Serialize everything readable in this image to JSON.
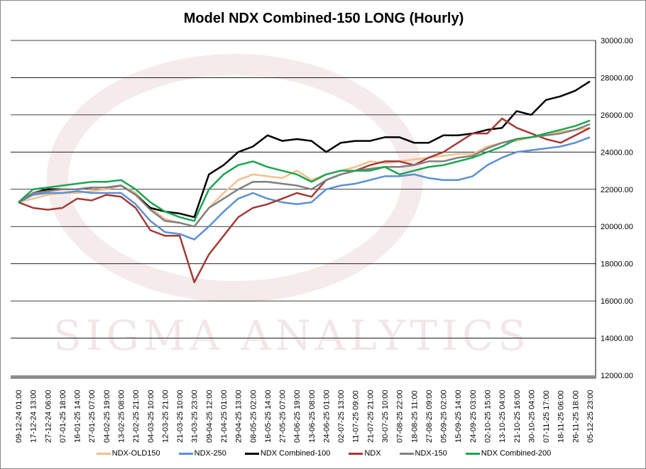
{
  "chart_data": {
    "type": "line",
    "title": "Model NDX Combined-150 LONG (Hourly)",
    "watermark": "SIGMA ANALYTICS",
    "xlabel": "",
    "ylabel": "",
    "ylim": [
      12000,
      30000
    ],
    "yticks": [
      12000,
      14000,
      16000,
      18000,
      20000,
      22000,
      24000,
      26000,
      28000,
      30000
    ],
    "ytick_labels": [
      "12000.00",
      "14000.00",
      "16000.00",
      "18000.00",
      "20000.00",
      "22000.00",
      "24000.00",
      "26000.00",
      "28000.00",
      "30000.00"
    ],
    "grid": true,
    "legend_position": "bottom",
    "categories": [
      "09-12-24 01:00",
      "17-12-24 13:00",
      "27-12-24 06:00",
      "07-01-25 18:00",
      "16-01-25 14:00",
      "27-01-25 07:00",
      "04-02-25 19:00",
      "13-02-25 08:00",
      "21-02-25 21:00",
      "04-03-25 10:00",
      "12-03-25 21:00",
      "21-03-25 10:00",
      "31-03-25 23:00",
      "09-04-25 12:00",
      "21-04-25 01:00",
      "29-04-25 13:00",
      "08-05-25 02:00",
      "16-05-25 14:00",
      "27-05-25 07:00",
      "04-06-25 19:00",
      "13-06-25 08:00",
      "24-06-25 01:00",
      "02-07-25 13:00",
      "11-07-25 09:00",
      "21-07-25 21:00",
      "30-07-25 10:00",
      "07-08-25 22:00",
      "18-08-25 11:00",
      "27-08-25 09:00",
      "05-09-25 02:00",
      "15-09-25 14:00",
      "24-09-25 03:00",
      "02-10-25 15:00",
      "13-10-25 04:00",
      "21-10-25 16:00",
      "30-10-25 04:00",
      "07-11-25 17:00",
      "18-11-25 06:00",
      "26-11-25 18:00",
      "05-12-25 23:00"
    ],
    "series": [
      {
        "name": "NDX-OLD150",
        "color": "#f4c08e",
        "values": [
          21300,
          21500,
          21700,
          21800,
          21800,
          21900,
          22000,
          22200,
          21800,
          21000,
          20400,
          20200,
          20000,
          21000,
          21800,
          22500,
          22800,
          22700,
          22600,
          23000,
          22500,
          22800,
          23000,
          23200,
          23500,
          23400,
          23500,
          23600,
          23700,
          23800,
          23900,
          23900,
          24300,
          24500,
          24600,
          24800,
          25000,
          25100,
          25200,
          25300
        ]
      },
      {
        "name": "NDX-250",
        "color": "#5b8fd6",
        "values": [
          21300,
          21700,
          21800,
          21800,
          21900,
          21800,
          21800,
          21800,
          21200,
          20300,
          19700,
          19600,
          19300,
          20000,
          20800,
          21500,
          21800,
          21500,
          21300,
          21200,
          21300,
          22000,
          22200,
          22300,
          22500,
          22700,
          22700,
          22800,
          22600,
          22500,
          22500,
          22700,
          23300,
          23700,
          24000,
          24100,
          24200,
          24300,
          24500,
          24800
        ]
      },
      {
        "name": "NDX Combined-100",
        "color": "#000000",
        "values": [
          21300,
          21800,
          22000,
          22000,
          22000,
          22100,
          22100,
          22200,
          21700,
          21000,
          20800,
          20700,
          20500,
          22800,
          23300,
          24000,
          24300,
          24900,
          24600,
          24700,
          24600,
          24000,
          24500,
          24600,
          24600,
          24800,
          24800,
          24500,
          24500,
          24900,
          24900,
          25000,
          25200,
          25300,
          26200,
          26000,
          26800,
          27000,
          27300,
          27800
        ]
      },
      {
        "name": "NDX",
        "color": "#a33a35",
        "values": [
          21300,
          21000,
          20900,
          21000,
          21500,
          21400,
          21700,
          21600,
          21000,
          19800,
          19500,
          19500,
          17000,
          18500,
          19500,
          20500,
          21000,
          21200,
          21500,
          21800,
          21600,
          22500,
          22800,
          23000,
          23300,
          23500,
          23500,
          23300,
          23700,
          24000,
          24500,
          25000,
          25000,
          25800,
          25300,
          25000,
          24700,
          24500,
          24900,
          25300
        ]
      },
      {
        "name": "NDX-150",
        "color": "#808080",
        "values": [
          21300,
          21800,
          21900,
          22000,
          22000,
          22100,
          22100,
          22200,
          21700,
          20900,
          20300,
          20200,
          20000,
          21000,
          21500,
          22000,
          22400,
          22400,
          22300,
          22200,
          22000,
          22500,
          22800,
          23000,
          23100,
          23200,
          23200,
          23300,
          23500,
          23500,
          23700,
          23800,
          24200,
          24500,
          24700,
          24800,
          24900,
          25000,
          25200,
          25500
        ]
      },
      {
        "name": "NDX Combined-200",
        "color": "#1aa550",
        "values": [
          21300,
          22000,
          22100,
          22200,
          22300,
          22400,
          22400,
          22500,
          22000,
          21300,
          20800,
          20500,
          20300,
          22000,
          22800,
          23300,
          23500,
          23200,
          23000,
          22800,
          22400,
          22800,
          23000,
          23000,
          23000,
          23200,
          22800,
          23000,
          23200,
          23300,
          23500,
          23700,
          24000,
          24300,
          24700,
          24800,
          25000,
          25200,
          25400,
          25700
        ]
      }
    ]
  }
}
